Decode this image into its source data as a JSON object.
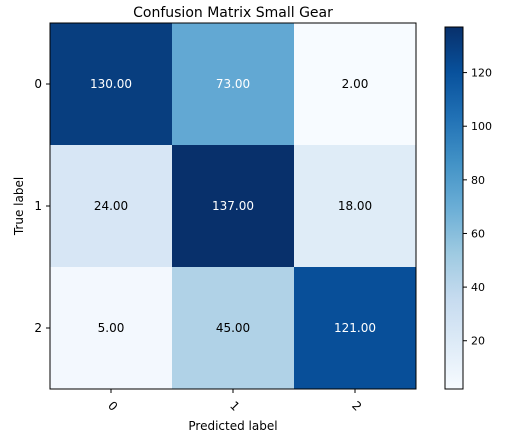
{
  "chart_data": {
    "type": "heatmap",
    "title": "Confusion Matrix Small Gear",
    "xlabel": "Predicted label",
    "ylabel": "True label",
    "x_categories": [
      "0",
      "1",
      "2"
    ],
    "y_categories": [
      "0",
      "1",
      "2"
    ],
    "values": [
      [
        130,
        73,
        2
      ],
      [
        24,
        137,
        18
      ],
      [
        5,
        45,
        121
      ]
    ],
    "cell_labels": [
      [
        "130.00",
        "73.00",
        "2.00"
      ],
      [
        "24.00",
        "137.00",
        "18.00"
      ],
      [
        "5.00",
        "45.00",
        "121.00"
      ]
    ],
    "colormap": "Blues",
    "vmin": 2,
    "vmax": 137,
    "colorbar_ticks": [
      "20",
      "40",
      "60",
      "80",
      "100",
      "120"
    ],
    "colorbar_tick_values": [
      20,
      40,
      60,
      80,
      100,
      120
    ],
    "grid": false
  }
}
